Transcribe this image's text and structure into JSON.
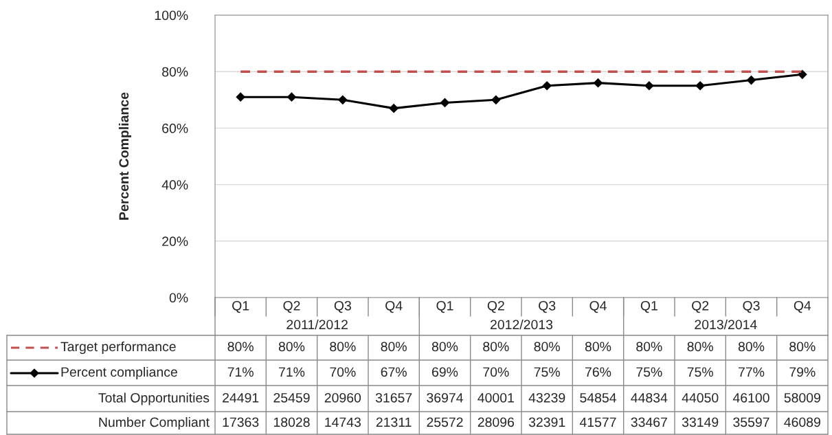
{
  "chart_data": [
    {
      "type": "line",
      "ylabel": "Percent Compliance",
      "categories": [
        "Q1",
        "Q2",
        "Q3",
        "Q4",
        "Q1",
        "Q2",
        "Q3",
        "Q4",
        "Q1",
        "Q2",
        "Q3",
        "Q4"
      ],
      "annotations": [
        "2011/2012",
        "2012/2013",
        "2013/2014"
      ],
      "series": [
        {
          "name": "Target performance",
          "color": "#c0504d",
          "line_style": "dashed",
          "marker": "none",
          "values": [
            80,
            80,
            80,
            80,
            80,
            80,
            80,
            80,
            80,
            80,
            80,
            80
          ],
          "value_labels": [
            "80%",
            "80%",
            "80%",
            "80%",
            "80%",
            "80%",
            "80%",
            "80%",
            "80%",
            "80%",
            "80%",
            "80%"
          ]
        },
        {
          "name": "Percent compliance",
          "color": "#000000",
          "line_style": "solid",
          "marker": "diamond",
          "values": [
            71,
            71,
            70,
            67,
            69,
            70,
            75,
            76,
            75,
            75,
            77,
            79
          ],
          "value_labels": [
            "71%",
            "71%",
            "70%",
            "67%",
            "69%",
            "70%",
            "75%",
            "76%",
            "75%",
            "75%",
            "77%",
            "79%"
          ]
        }
      ],
      "ylim": [
        0,
        100
      ],
      "yticks": [
        {
          "value": 0,
          "label": "0%"
        },
        {
          "value": 20,
          "label": "20%"
        },
        {
          "value": 40,
          "label": "40%"
        },
        {
          "value": 60,
          "label": "60%"
        },
        {
          "value": 80,
          "label": "80%"
        },
        {
          "value": 100,
          "label": "100%"
        }
      ],
      "grid": "y",
      "legend": "bottom"
    },
    {
      "type": "other",
      "annotations": [
        "Total Opportunities",
        "24491",
        "25459",
        "20960",
        "31657",
        "36974",
        "40001",
        "43239",
        "54854",
        "44834",
        "44050",
        "46100",
        "58009",
        "Number Compliant",
        "17363",
        "18028",
        "14743",
        "21311",
        "25572",
        "28096",
        "32391",
        "41577",
        "33467",
        "33149",
        "35597",
        "46089"
      ]
    }
  ]
}
